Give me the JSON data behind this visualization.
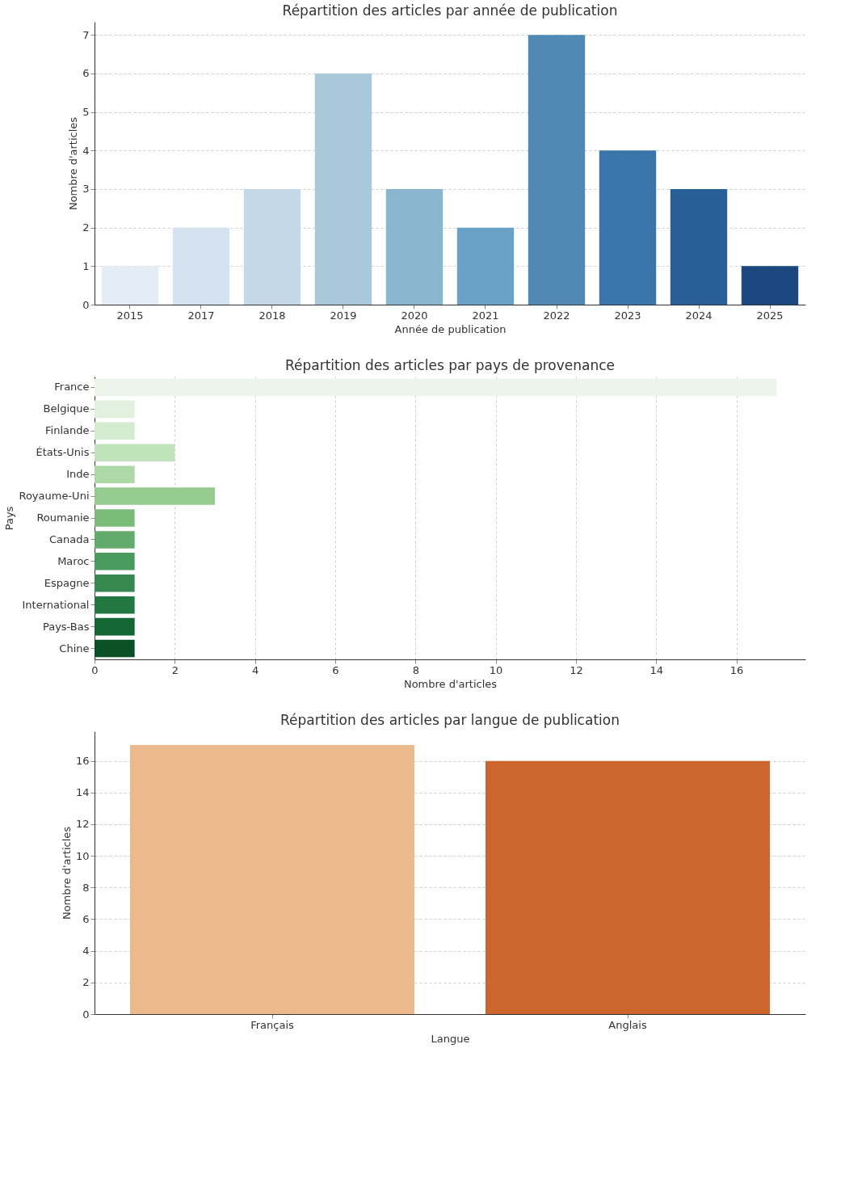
{
  "chart_data": [
    {
      "type": "bar",
      "title": "Répartition des articles par année de publication",
      "xlabel": "Année de publication",
      "ylabel": "Nombre d'articles",
      "categories": [
        "2015",
        "2017",
        "2018",
        "2019",
        "2020",
        "2021",
        "2022",
        "2023",
        "2024",
        "2025"
      ],
      "values": [
        1,
        2,
        3,
        6,
        3,
        2,
        7,
        4,
        3,
        1
      ],
      "colors": [
        "#e4edf6",
        "#d5e2f0",
        "#c4d8e8",
        "#a9c9db",
        "#89b5cf",
        "#69a2c6",
        "#4f8ab4",
        "#3975aa",
        "#285f96",
        "#1c487f"
      ],
      "ylim": [
        0,
        7.34
      ],
      "yticks": [
        0,
        1,
        2,
        3,
        4,
        5,
        6,
        7
      ],
      "grid": "y"
    },
    {
      "type": "bar",
      "orientation": "horizontal",
      "title": "Répartition des articles par pays de provenance",
      "xlabel": "Nombre d'articles",
      "ylabel": "Pays",
      "categories": [
        "France",
        "Belgique",
        "Finlande",
        "États-Unis",
        "Inde",
        "Royaume-Uni",
        "Roumanie",
        "Canada",
        "Maroc",
        "Espagne",
        "International",
        "Pays-Bas",
        "Chine"
      ],
      "values": [
        17,
        1,
        1,
        2,
        1,
        3,
        1,
        1,
        1,
        1,
        1,
        1,
        1
      ],
      "colors": [
        "#edf5ea",
        "#e2f1de",
        "#d3ebce",
        "#c1e3bb",
        "#acd9a6",
        "#95cb8f",
        "#7cbc7b",
        "#62ab6d",
        "#4a9a5e",
        "#368850",
        "#237842",
        "#126733",
        "#0b4f27"
      ],
      "xlim": [
        0,
        17.72
      ],
      "xticks": [
        0,
        2,
        4,
        6,
        8,
        10,
        12,
        14,
        16
      ],
      "grid": "x"
    },
    {
      "type": "bar",
      "title": "Répartition des articles par langue de publication",
      "xlabel": "Langue",
      "ylabel": "Nombre d'articles",
      "categories": [
        "Français",
        "Anglais"
      ],
      "values": [
        17,
        16
      ],
      "colors": [
        "#ebb98b",
        "#cc662c"
      ],
      "ylim": [
        0,
        17.87
      ],
      "yticks": [
        0,
        2,
        4,
        6,
        8,
        10,
        12,
        14,
        16
      ],
      "grid": "y"
    }
  ]
}
